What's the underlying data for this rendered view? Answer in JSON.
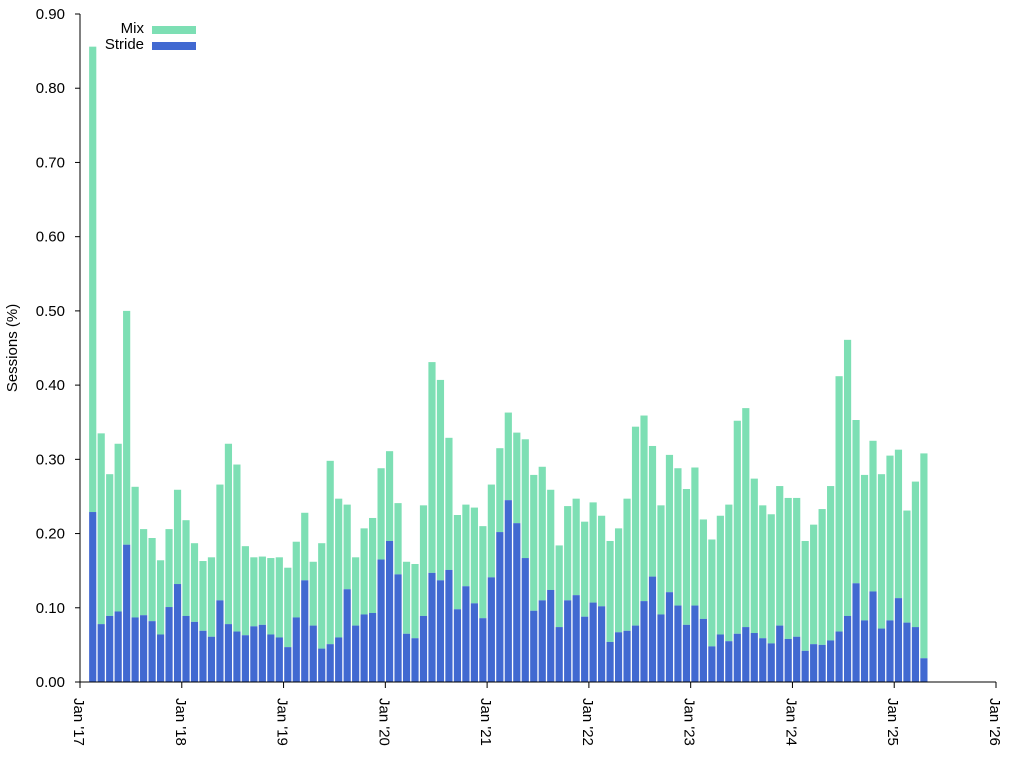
{
  "chart_data": {
    "type": "bar",
    "stacked": true,
    "ylabel": "Sessions (%)",
    "xlabel": "",
    "ylim": [
      0,
      0.9
    ],
    "yticks": [
      "0.00",
      "0.10",
      "0.20",
      "0.30",
      "0.40",
      "0.50",
      "0.60",
      "0.70",
      "0.80",
      "0.90"
    ],
    "xticks": [
      "Jan '17",
      "Jan '18",
      "Jan '19",
      "Jan '20",
      "Jan '21",
      "Jan '22",
      "Jan '23",
      "Jan '24",
      "Jan '25",
      "Jan '26"
    ],
    "xrange": [
      "2017-01",
      "2026-01"
    ],
    "first_period": "2017-02",
    "grid": false,
    "legend_position": "top-left",
    "colors": {
      "Mix": "#7ddfb4",
      "Stride": "#4169d1"
    },
    "series": [
      {
        "name": "Stride",
        "values": [
          0.229,
          0.078,
          0.089,
          0.095,
          0.185,
          0.087,
          0.09,
          0.082,
          0.064,
          0.101,
          0.132,
          0.089,
          0.081,
          0.069,
          0.061,
          0.11,
          0.078,
          0.068,
          0.063,
          0.075,
          0.077,
          0.064,
          0.06,
          0.047,
          0.087,
          0.137,
          0.076,
          0.045,
          0.051,
          0.06,
          0.125,
          0.076,
          0.091,
          0.093,
          0.165,
          0.19,
          0.145,
          0.065,
          0.059,
          0.089,
          0.147,
          0.137,
          0.151,
          0.098,
          0.129,
          0.106,
          0.086,
          0.141,
          0.202,
          0.245,
          0.214,
          0.167,
          0.096,
          0.11,
          0.124,
          0.074,
          0.11,
          0.117,
          0.088,
          0.107,
          0.102,
          0.054,
          0.067,
          0.069,
          0.076,
          0.109,
          0.142,
          0.091,
          0.121,
          0.103,
          0.077,
          0.103,
          0.085,
          0.048,
          0.064,
          0.055,
          0.065,
          0.074,
          0.066,
          0.059,
          0.052,
          0.076,
          0.058,
          0.061,
          0.042,
          0.051,
          0.05,
          0.056,
          0.068,
          0.089,
          0.133,
          0.083,
          0.122,
          0.072,
          0.083,
          0.113,
          0.08,
          0.074,
          0.032
        ]
      },
      {
        "name": "Mix",
        "values": [
          0.627,
          0.257,
          0.191,
          0.226,
          0.315,
          0.176,
          0.116,
          0.112,
          0.1,
          0.105,
          0.127,
          0.129,
          0.106,
          0.094,
          0.107,
          0.156,
          0.243,
          0.225,
          0.12,
          0.093,
          0.092,
          0.103,
          0.108,
          0.107,
          0.102,
          0.091,
          0.086,
          0.142,
          0.247,
          0.187,
          0.114,
          0.092,
          0.116,
          0.128,
          0.123,
          0.121,
          0.096,
          0.097,
          0.1,
          0.149,
          0.284,
          0.27,
          0.178,
          0.127,
          0.11,
          0.129,
          0.124,
          0.125,
          0.113,
          0.118,
          0.122,
          0.16,
          0.183,
          0.18,
          0.135,
          0.11,
          0.127,
          0.13,
          0.128,
          0.135,
          0.122,
          0.136,
          0.14,
          0.178,
          0.268,
          0.25,
          0.176,
          0.147,
          0.185,
          0.185,
          0.183,
          0.186,
          0.134,
          0.144,
          0.16,
          0.184,
          0.287,
          0.295,
          0.208,
          0.179,
          0.174,
          0.188,
          0.19,
          0.187,
          0.148,
          0.161,
          0.183,
          0.208,
          0.344,
          0.372,
          0.22,
          0.196,
          0.203,
          0.208,
          0.222,
          0.2,
          0.151,
          0.196,
          0.276
        ]
      }
    ]
  }
}
